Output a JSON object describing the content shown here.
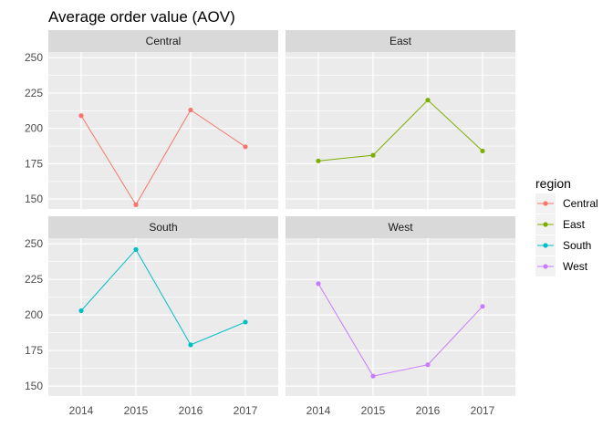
{
  "chart_data": {
    "type": "line",
    "title": "Average order value (AOV)",
    "xlabel": "",
    "ylabel": "",
    "x": [
      "2014",
      "2015",
      "2016",
      "2017"
    ],
    "yticks": [
      "150",
      "175",
      "200",
      "225",
      "250"
    ],
    "ylim": [
      143,
      254
    ],
    "grid": true,
    "facet_by": "region",
    "legend": {
      "title": "region",
      "position": "right"
    },
    "series": [
      {
        "name": "Central",
        "color": "#F8766D",
        "values": [
          209,
          146,
          213,
          187
        ]
      },
      {
        "name": "East",
        "color": "#7CAE00",
        "values": [
          177,
          181,
          220,
          184
        ]
      },
      {
        "name": "South",
        "color": "#00BFC4",
        "values": [
          203,
          246,
          179,
          195
        ]
      },
      {
        "name": "West",
        "color": "#C77CFF",
        "values": [
          222,
          157,
          165,
          206
        ]
      }
    ]
  },
  "theme": {
    "panel_background": "#EBEBEB",
    "strip_background": "#D9D9D9",
    "grid_color": "#FFFFFF"
  }
}
